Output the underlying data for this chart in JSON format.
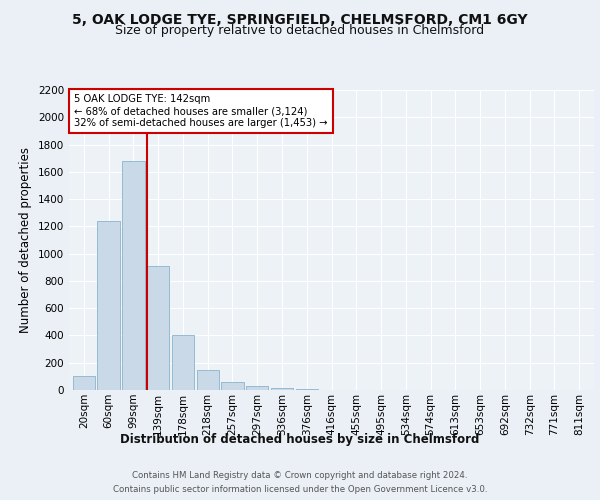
{
  "title": "5, OAK LODGE TYE, SPRINGFIELD, CHELMSFORD, CM1 6GY",
  "subtitle": "Size of property relative to detached houses in Chelmsford",
  "xlabel": "Distribution of detached houses by size in Chelmsford",
  "ylabel": "Number of detached properties",
  "bar_labels": [
    "20sqm",
    "60sqm",
    "99sqm",
    "139sqm",
    "178sqm",
    "218sqm",
    "257sqm",
    "297sqm",
    "336sqm",
    "376sqm",
    "416sqm",
    "455sqm",
    "495sqm",
    "534sqm",
    "574sqm",
    "613sqm",
    "653sqm",
    "692sqm",
    "732sqm",
    "771sqm",
    "811sqm"
  ],
  "bar_values": [
    100,
    1240,
    1680,
    910,
    400,
    150,
    60,
    30,
    15,
    5,
    3,
    2,
    1,
    1,
    0,
    0,
    0,
    0,
    0,
    0,
    0
  ],
  "bar_color": "#c9d9e8",
  "bar_edge_color": "#8ab4cc",
  "highlight_bar_index": 3,
  "vline_color": "#cc0000",
  "annotation_text": "5 OAK LODGE TYE: 142sqm\n← 68% of detached houses are smaller (3,124)\n32% of semi-detached houses are larger (1,453) →",
  "annotation_box_color": "#ffffff",
  "annotation_box_edge": "#cc0000",
  "ylim": [
    0,
    2200
  ],
  "yticks": [
    0,
    200,
    400,
    600,
    800,
    1000,
    1200,
    1400,
    1600,
    1800,
    2000,
    2200
  ],
  "footer_line1": "Contains HM Land Registry data © Crown copyright and database right 2024.",
  "footer_line2": "Contains public sector information licensed under the Open Government Licence v3.0.",
  "bg_color": "#eaf0f6",
  "plot_bg_color": "#edf2f7",
  "title_fontsize": 10,
  "subtitle_fontsize": 9,
  "axis_label_fontsize": 8.5,
  "tick_fontsize": 7.5,
  "footer_fontsize": 6.2
}
